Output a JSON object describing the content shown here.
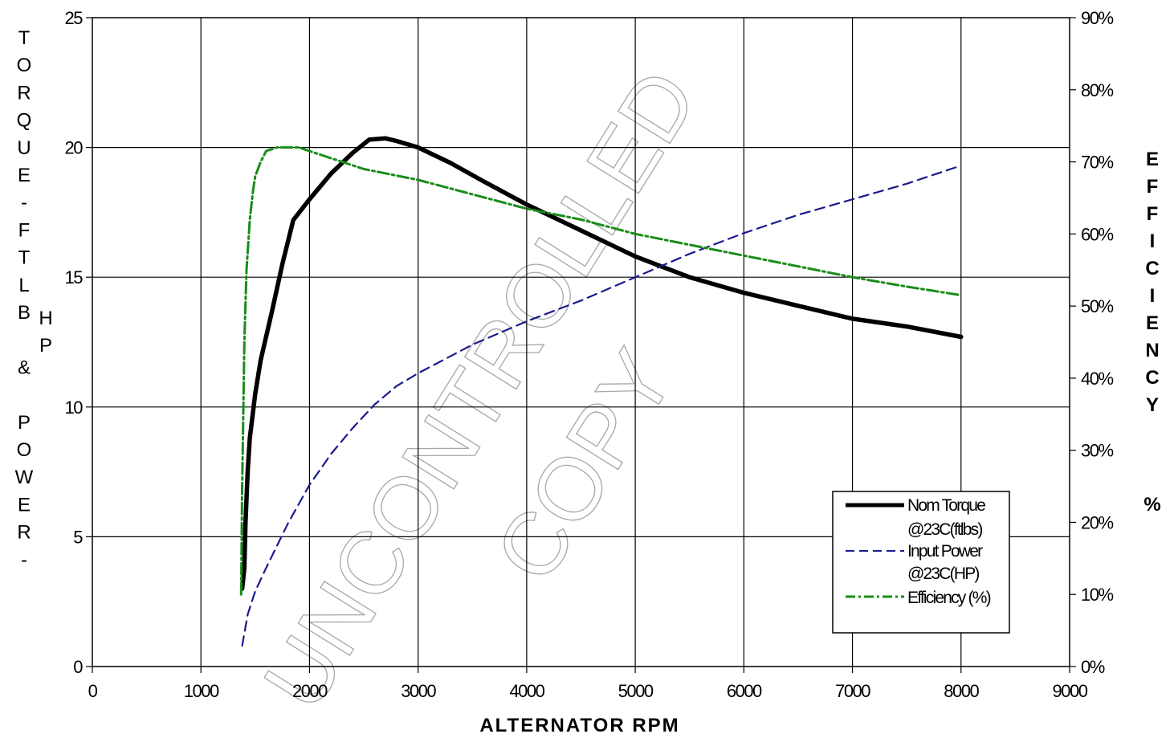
{
  "chart_data": {
    "type": "line",
    "xlabel": "ALTERNATOR RPM",
    "ylabel_left": "TORQUE-FTLB & POWER-",
    "ylabel_left_secondary": "HP",
    "ylabel_right": "EFFICIENCY",
    "ylabel_right_unit": "%",
    "xlim": [
      0,
      9000
    ],
    "ylim_left": [
      0,
      25
    ],
    "ylim_right": [
      0,
      90
    ],
    "grid": true,
    "legend_position": "bottom-right",
    "x_ticks": [
      "0",
      "1000",
      "2000",
      "3000",
      "4000",
      "5000",
      "6000",
      "7000",
      "8000",
      "9000"
    ],
    "y_left_ticks": [
      "0",
      "5",
      "10",
      "15",
      "20",
      "25"
    ],
    "y_right_ticks": [
      "0%",
      "10%",
      "20%",
      "30%",
      "40%",
      "50%",
      "60%",
      "70%",
      "80%",
      "90%"
    ],
    "watermark": [
      "UNCONTROLLED",
      "COPY"
    ],
    "series": [
      {
        "name": "Nom Torque @23C(ftlbs)",
        "axis": "left",
        "color": "#000000",
        "style": "solid",
        "x": [
          1380,
          1400,
          1410,
          1430,
          1450,
          1500,
          1550,
          1650,
          1750,
          1850,
          2000,
          2200,
          2400,
          2550,
          2700,
          2800,
          3000,
          3300,
          3600,
          4000,
          4500,
          5000,
          5500,
          6000,
          6500,
          7000,
          7500,
          8000
        ],
        "values": [
          3.0,
          3.8,
          5.5,
          7.5,
          8.8,
          10.5,
          11.8,
          13.6,
          15.5,
          17.2,
          18.0,
          19.0,
          19.8,
          20.3,
          20.35,
          20.25,
          20.0,
          19.4,
          18.7,
          17.8,
          16.8,
          15.8,
          15.0,
          14.4,
          13.9,
          13.4,
          13.1,
          12.7
        ]
      },
      {
        "name": "Input Power @23C(HP)",
        "axis": "left",
        "color": "#1a1a8c",
        "style": "dashed",
        "x": [
          1380,
          1430,
          1500,
          1600,
          1800,
          2000,
          2200,
          2400,
          2600,
          2800,
          3000,
          3500,
          4000,
          4500,
          5000,
          5500,
          6000,
          6500,
          7000,
          7500,
          8000
        ],
        "values": [
          0.8,
          2.0,
          2.9,
          3.8,
          5.5,
          7.0,
          8.2,
          9.2,
          10.1,
          10.8,
          11.3,
          12.4,
          13.3,
          14.1,
          15.0,
          15.9,
          16.7,
          17.4,
          18.0,
          18.6,
          19.3
        ]
      },
      {
        "name": "Efficiency (%)",
        "axis": "right",
        "color": "#1a8c1a",
        "style": "dashdot",
        "x": [
          1370,
          1380,
          1400,
          1420,
          1450,
          1480,
          1500,
          1550,
          1600,
          1700,
          1800,
          1900,
          2000,
          2200,
          2500,
          3000,
          3500,
          4000,
          4500,
          5000,
          5500,
          6000,
          6500,
          7000,
          7500,
          8000
        ],
        "values": [
          10,
          25,
          45,
          55,
          62,
          66,
          68,
          70,
          71.5,
          72,
          72,
          72,
          71.5,
          70.5,
          69,
          67.5,
          65.5,
          63.5,
          62,
          60,
          58.5,
          57,
          55.5,
          54,
          52.7,
          51.5
        ]
      }
    ]
  }
}
